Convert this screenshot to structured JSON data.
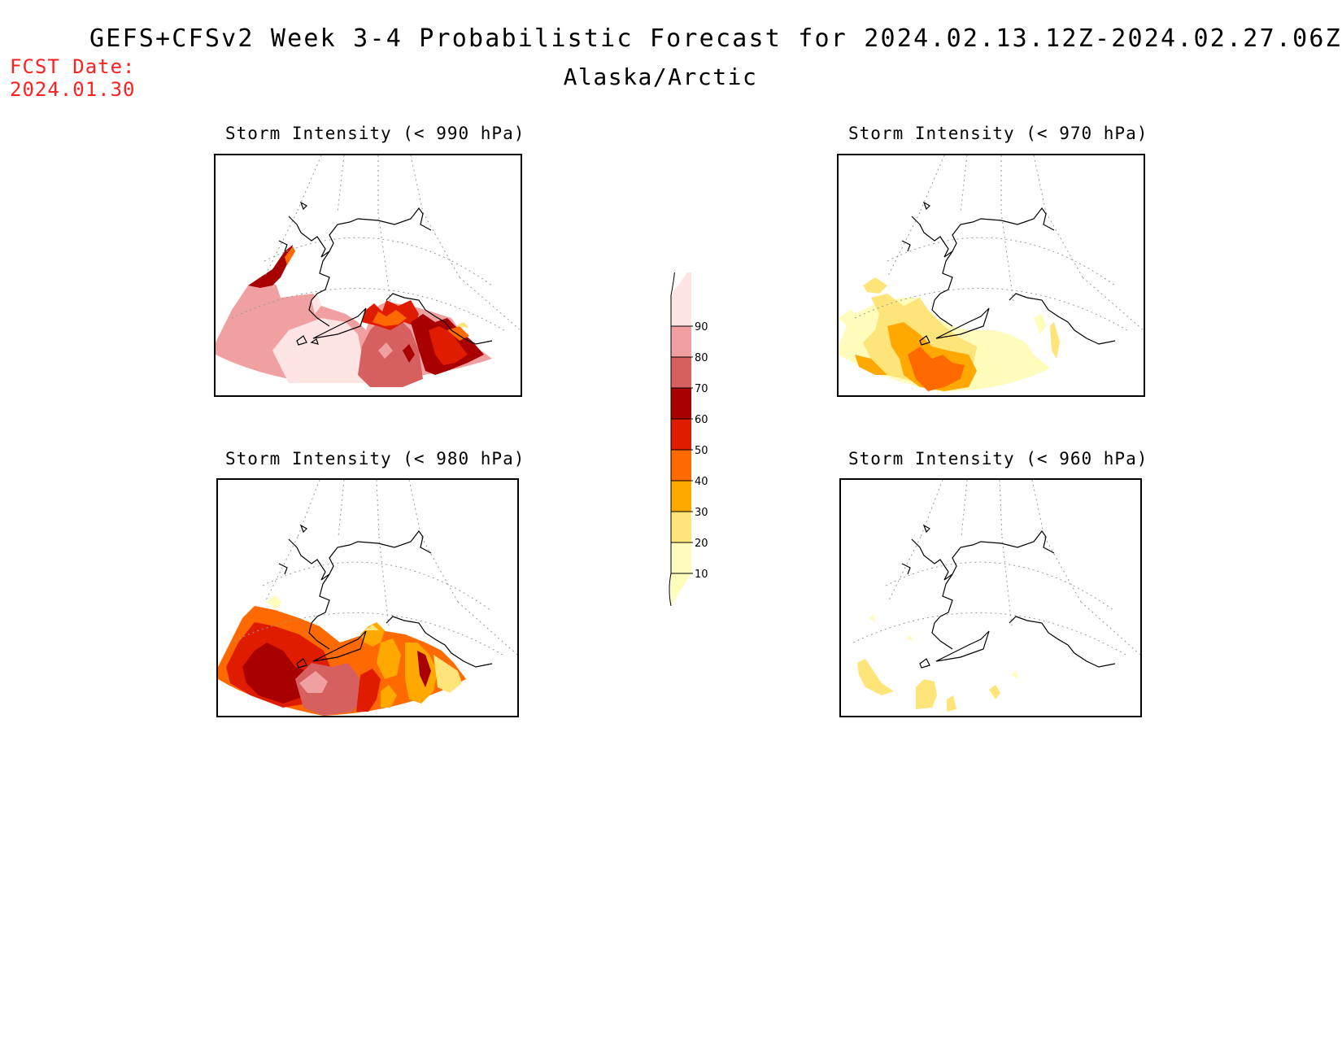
{
  "title": "GEFS+CFSv2 Week 3-4 Probabilistic Forecast for 2024.02.13.12Z-2024.02.27.06Z",
  "region": "Alaska/Arctic",
  "forecast_date_label": "FCST Date:",
  "forecast_date": "2024.01.30",
  "panels": [
    {
      "title": "Storm Intensity (< 990 hPa)",
      "threshold": "990",
      "max_category": "90"
    },
    {
      "title": "Storm Intensity (< 970 hPa)",
      "threshold": "970",
      "max_category": "40"
    },
    {
      "title": "Storm Intensity (< 980 hPa)",
      "threshold": "980",
      "max_category": "70"
    },
    {
      "title": "Storm Intensity (< 960 hPa)",
      "threshold": "960",
      "max_category": "20"
    }
  ],
  "legend": {
    "levels": [
      "10",
      "20",
      "30",
      "40",
      "50",
      "60",
      "70",
      "80",
      "90"
    ],
    "colors": [
      "#fffcbc",
      "#ffe47a",
      "#ffa800",
      "#ff6a00",
      "#e01c00",
      "#a80000",
      "#d66060",
      "#f0a0a0",
      "#ffe4e4"
    ],
    "top_color": "#ffe4e4"
  }
}
